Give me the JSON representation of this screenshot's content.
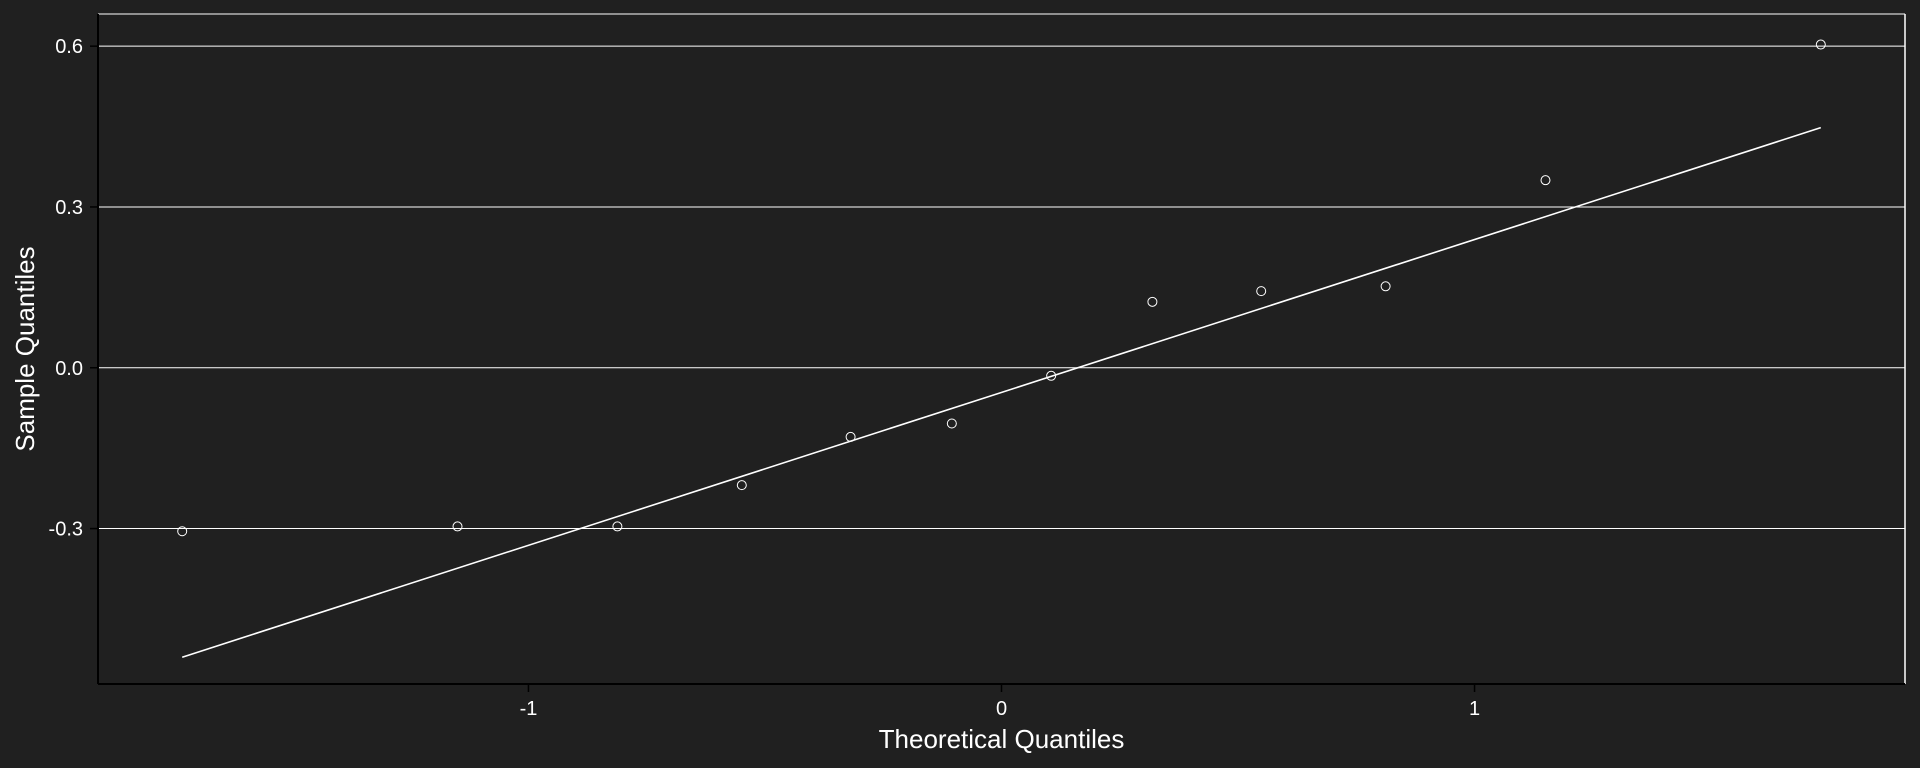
{
  "chart_data": {
    "type": "scatter",
    "title": "",
    "xlabel": "Theoretical Quantiles",
    "ylabel": "Sample Quantiles",
    "xlim": [
      -1.91,
      1.91
    ],
    "ylim": [
      -0.59,
      0.66
    ],
    "x_ticks": [
      -1,
      0,
      1
    ],
    "x_tick_labels": [
      "-1",
      "0",
      "1"
    ],
    "y_ticks": [
      -0.3,
      0.0,
      0.3,
      0.6
    ],
    "y_tick_labels": [
      "-0.3",
      "0.0",
      "0.3",
      "0.6"
    ],
    "grid": {
      "horizontal": true,
      "vertical": false
    },
    "legend": "none",
    "series": [
      {
        "kind": "points",
        "x": [
          -1.732,
          -1.15,
          -0.812,
          -0.549,
          -0.319,
          -0.105,
          0.105,
          0.319,
          0.549,
          0.812,
          1.15,
          1.732
        ],
        "y": [
          -0.305,
          -0.296,
          -0.296,
          -0.219,
          -0.129,
          -0.104,
          -0.015,
          0.123,
          0.143,
          0.152,
          0.35,
          0.603
        ]
      },
      {
        "kind": "reference-line",
        "x": [
          -1.732,
          1.732
        ],
        "y": [
          -0.54,
          0.448
        ]
      }
    ],
    "colors": {
      "background": "#202020",
      "foreground": "#ffffff"
    }
  }
}
